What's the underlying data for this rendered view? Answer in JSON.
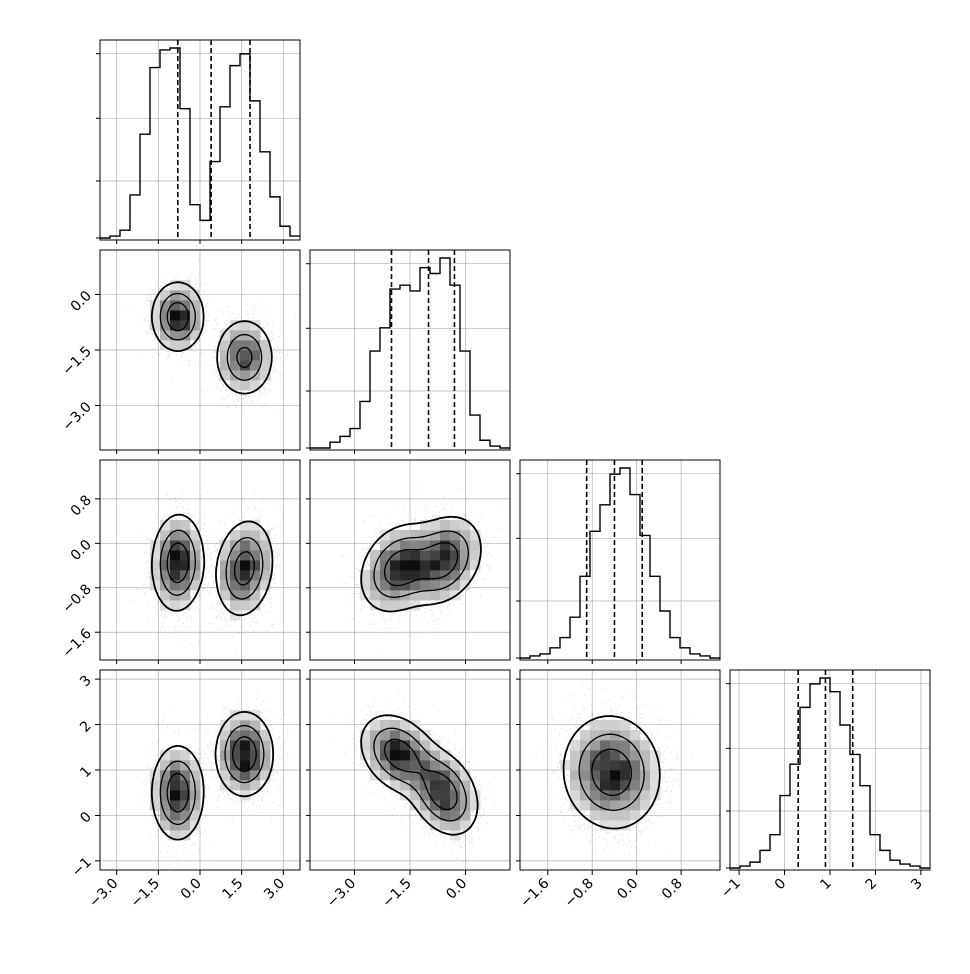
{
  "chart_data": {
    "type": "corner",
    "variables": [
      {
        "index": 0,
        "range": [
          -3.6,
          3.6
        ],
        "ticks": [
          -3.0,
          -1.5,
          0.0,
          1.5,
          3.0
        ],
        "tick_labels": [
          "−3.0",
          "−1.5",
          "0.0",
          "1.5",
          "3.0"
        ],
        "quantiles": [
          -0.8,
          0.4,
          1.8
        ],
        "hist_bins": [
          -3.6,
          -3.24,
          -2.88,
          -2.52,
          -2.16,
          -1.8,
          -1.44,
          -1.08,
          -0.72,
          -0.36,
          0.0,
          0.36,
          0.72,
          1.08,
          1.44,
          1.8,
          2.16,
          2.52,
          2.88,
          3.24,
          3.6
        ],
        "hist_counts": [
          0,
          1,
          4,
          22,
          53,
          87,
          96,
          97,
          66,
          17,
          9,
          39,
          67,
          88,
          94,
          70,
          44,
          21,
          6,
          1
        ]
      },
      {
        "index": 1,
        "range": [
          -4.2,
          1.2
        ],
        "ticks": [
          -3.0,
          -1.5,
          0.0
        ],
        "tick_labels": [
          "−3.0",
          "−1.5",
          "0.0"
        ],
        "quantiles": [
          -2.0,
          -1.0,
          -0.3
        ],
        "hist_bins": [
          -4.2,
          -3.93,
          -3.66,
          -3.39,
          -3.12,
          -2.85,
          -2.58,
          -2.31,
          -2.04,
          -1.77,
          -1.5,
          -1.23,
          -0.96,
          -0.69,
          -0.42,
          -0.15,
          0.12,
          0.39,
          0.66,
          0.93,
          1.2
        ],
        "hist_counts": [
          0,
          0,
          3,
          6,
          10,
          24,
          50,
          62,
          82,
          84,
          81,
          93,
          90,
          98,
          84,
          50,
          17,
          4,
          1,
          0
        ]
      },
      {
        "index": 2,
        "range": [
          -2.1,
          1.5
        ],
        "ticks": [
          -1.6,
          -0.8,
          0.0,
          0.8
        ],
        "tick_labels": [
          "−1.6",
          "−0.8",
          "0.0",
          "0.8"
        ],
        "quantiles": [
          -0.9,
          -0.4,
          0.1
        ],
        "hist_bins": [
          -2.1,
          -1.92,
          -1.74,
          -1.56,
          -1.38,
          -1.2,
          -1.02,
          -0.84,
          -0.66,
          -0.48,
          -0.3,
          -0.12,
          0.06,
          0.24,
          0.42,
          0.6,
          0.78,
          0.96,
          1.14,
          1.32,
          1.5
        ],
        "hist_counts": [
          0,
          1,
          2,
          5,
          10,
          20,
          40,
          62,
          75,
          90,
          93,
          80,
          60,
          40,
          23,
          10,
          5,
          2,
          1,
          0
        ]
      },
      {
        "index": 3,
        "range": [
          -1.2,
          3.2
        ],
        "ticks": [
          -1,
          0,
          1,
          2,
          3
        ],
        "tick_labels": [
          "−1",
          "0",
          "1",
          "2",
          "3"
        ],
        "quantiles": [
          0.3,
          0.9,
          1.5
        ],
        "hist_bins": [
          -1.2,
          -0.98,
          -0.76,
          -0.54,
          -0.32,
          -0.1,
          0.12,
          0.34,
          0.56,
          0.78,
          1.0,
          1.22,
          1.44,
          1.66,
          1.88,
          2.1,
          2.32,
          2.54,
          2.76,
          2.98,
          3.2
        ],
        "hist_counts": [
          0,
          1,
          3,
          9,
          17,
          37,
          53,
          82,
          94,
          97,
          90,
          73,
          58,
          42,
          17,
          9,
          4,
          2,
          1,
          0
        ]
      }
    ],
    "pairs": [
      {
        "x": 0,
        "y": 1,
        "modes": [
          {
            "mx": -0.8,
            "my": -0.6,
            "sx": 0.45,
            "sy": 0.45,
            "rho": 0.0,
            "w": 0.5
          },
          {
            "mx": 1.6,
            "my": -1.7,
            "sx": 0.5,
            "sy": 0.5,
            "rho": 0.0,
            "w": 0.5
          }
        ]
      },
      {
        "x": 0,
        "y": 2,
        "modes": [
          {
            "mx": -0.8,
            "my": -0.35,
            "sx": 0.45,
            "sy": 0.42,
            "rho": 0.05,
            "w": 0.5
          },
          {
            "mx": 1.6,
            "my": -0.45,
            "sx": 0.5,
            "sy": 0.42,
            "rho": 0.15,
            "w": 0.5
          }
        ]
      },
      {
        "x": 0,
        "y": 3,
        "modes": [
          {
            "mx": -0.8,
            "my": 0.5,
            "sx": 0.45,
            "sy": 0.5,
            "rho": 0.0,
            "w": 0.5
          },
          {
            "mx": 1.6,
            "my": 1.35,
            "sx": 0.5,
            "sy": 0.45,
            "rho": 0.0,
            "w": 0.5
          }
        ]
      },
      {
        "x": 1,
        "y": 2,
        "modes": [
          {
            "mx": -0.6,
            "my": -0.3,
            "sx": 0.5,
            "sy": 0.38,
            "rho": 0.25,
            "w": 0.5
          },
          {
            "mx": -1.8,
            "my": -0.45,
            "sx": 0.5,
            "sy": 0.38,
            "rho": 0.25,
            "w": 0.5
          }
        ]
      },
      {
        "x": 1,
        "y": 3,
        "modes": [
          {
            "mx": -0.6,
            "my": 0.5,
            "sx": 0.45,
            "sy": 0.45,
            "rho": -0.3,
            "w": 0.5
          },
          {
            "mx": -1.8,
            "my": 1.35,
            "sx": 0.5,
            "sy": 0.42,
            "rho": -0.3,
            "w": 0.5
          }
        ]
      },
      {
        "x": 2,
        "y": 3,
        "modes": [
          {
            "mx": -0.45,
            "my": 0.95,
            "sx": 0.42,
            "sy": 0.6,
            "rho": -0.05,
            "w": 1.0
          }
        ]
      }
    ],
    "contour_levels": [
      "39%",
      "86%",
      "99%"
    ],
    "colors": {
      "line": "#000000",
      "scatter": "#000000",
      "grid": "#b0b0b0",
      "density": "#000000"
    }
  }
}
